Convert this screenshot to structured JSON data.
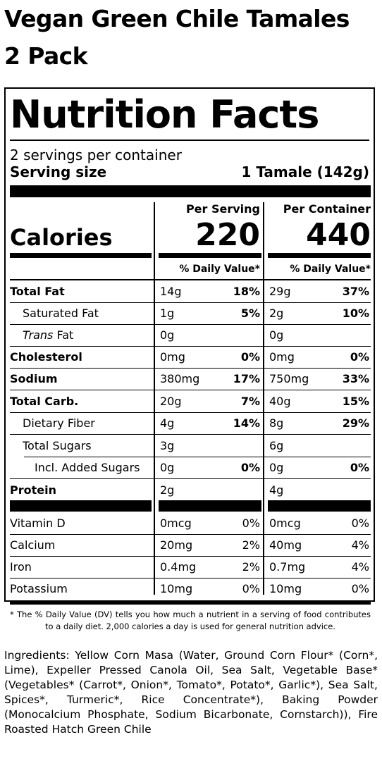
{
  "product_title": "Vegan Green Chile Tamales 2 Pack",
  "label": {
    "heading": "Nutrition Facts",
    "servings_per_container": "2 servings per container",
    "serving_size_label": "Serving size",
    "serving_size_value": "1 Tamale (142g)",
    "col1_header": "Per Serving",
    "col2_header": "Per Container",
    "calories_label": "Calories",
    "calories_serving": "220",
    "calories_container": "440",
    "dv_header": "% Daily Value*",
    "nutrients": [
      {
        "name": "Total Fat",
        "amt1": "14g",
        "pct1": "18%",
        "amt2": "29g",
        "pct2": "37%"
      },
      {
        "name": "Saturated Fat",
        "amt1": "1g",
        "pct1": "5%",
        "amt2": "2g",
        "pct2": "10%"
      },
      {
        "name_italic": "Trans",
        "name": " Fat",
        "amt1": "0g",
        "pct1": "",
        "amt2": "0g",
        "pct2": ""
      },
      {
        "name": "Cholesterol",
        "amt1": "0mg",
        "pct1": "0%",
        "amt2": "0mg",
        "pct2": "0%"
      },
      {
        "name": "Sodium",
        "amt1": "380mg",
        "pct1": "17%",
        "amt2": "750mg",
        "pct2": "33%"
      },
      {
        "name": "Total Carb.",
        "amt1": "20g",
        "pct1": "7%",
        "amt2": "40g",
        "pct2": "15%"
      },
      {
        "name": "Dietary Fiber",
        "amt1": "4g",
        "pct1": "14%",
        "amt2": "8g",
        "pct2": "29%"
      },
      {
        "name": "Total Sugars",
        "amt1": "3g",
        "pct1": "",
        "amt2": "6g",
        "pct2": ""
      },
      {
        "name": "Incl. Added Sugars",
        "amt1": "0g",
        "pct1": "0%",
        "amt2": "0g",
        "pct2": "0%"
      },
      {
        "name": "Protein",
        "amt1": "2g",
        "pct1": "",
        "amt2": "4g",
        "pct2": ""
      }
    ],
    "vitamins": [
      {
        "name": "Vitamin D",
        "amt1": "0mcg",
        "pct1": "0%",
        "amt2": "0mcg",
        "pct2": "0%"
      },
      {
        "name": "Calcium",
        "amt1": "20mg",
        "pct1": "2%",
        "amt2": "40mg",
        "pct2": "4%"
      },
      {
        "name": "Iron",
        "amt1": "0.4mg",
        "pct1": "2%",
        "amt2": "0.7mg",
        "pct2": "4%"
      },
      {
        "name": "Potassium",
        "amt1": "10mg",
        "pct1": "0%",
        "amt2": "10mg",
        "pct2": "0%"
      }
    ],
    "footnote": "* The % Daily Value (DV) tells you how much a nutrient in a serving of food contributes to a daily diet. 2,000 calories a day is used for general nutrition advice."
  },
  "ingredients": "Ingredients: Yellow Corn Masa (Water, Ground Corn Flour* (Corn*, Lime), Expeller Pressed Canola Oil, Sea Salt, Vegetable Base* (Vegetables* (Carrot*, Onion*, Tomato*, Potato*, Garlic*), Sea Salt, Spices*, Turmeric*, Rice Concentrate*), Baking Powder (Monocalcium Phosphate, Sodium Bicarbonate, Cornstarch)), Fire Roasted Hatch Green Chile"
}
